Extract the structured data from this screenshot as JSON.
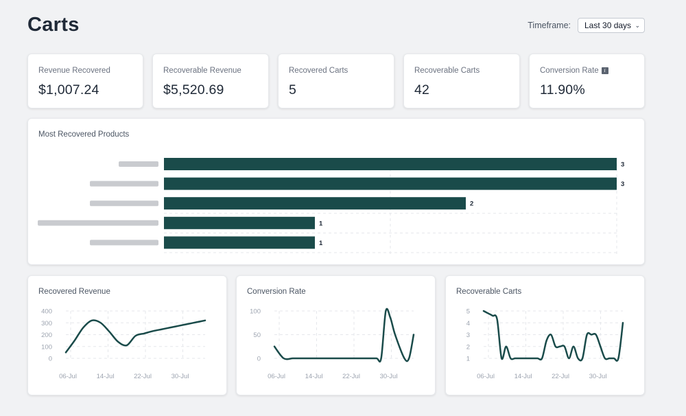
{
  "header": {
    "title": "Carts",
    "timeframe_label": "Timeframe:",
    "timeframe_value": "Last 30 days"
  },
  "stats": [
    {
      "label": "Revenue Recovered",
      "value": "$1,007.24"
    },
    {
      "label": "Recoverable Revenue",
      "value": "$5,520.69"
    },
    {
      "label": "Recovered Carts",
      "value": "5"
    },
    {
      "label": "Recoverable Carts",
      "value": "42"
    },
    {
      "label": "Conversion Rate",
      "value": "11.90%",
      "info_icon": "info-icon"
    }
  ],
  "colors": {
    "accent": "#1a4b4a",
    "grid": "#e5e7eb",
    "axis_text": "#9ca3af"
  },
  "products_card": {
    "title": "Most Recovered Products"
  },
  "chart_data": [
    {
      "type": "bar",
      "orientation": "horizontal",
      "title": "Most Recovered Products",
      "categories": [
        "",
        "",
        "",
        "",
        ""
      ],
      "values": [
        3,
        3,
        2,
        1,
        1
      ],
      "xlim": [
        0,
        3
      ],
      "data_labels": [
        "3",
        "3",
        "2",
        "1",
        "1"
      ],
      "grid": true
    },
    {
      "type": "line",
      "title": "Recovered Revenue",
      "xticks": [
        "06-Jul",
        "14-Jul",
        "22-Jul",
        "30-Jul"
      ],
      "yticks": [
        "400",
        "300",
        "200",
        "100",
        "0"
      ],
      "ylim": [
        0,
        400
      ],
      "x": [
        0,
        2,
        4,
        6,
        8,
        10,
        12,
        14,
        16,
        18,
        20,
        22,
        24,
        26,
        28,
        30,
        32
      ],
      "values": [
        50,
        150,
        260,
        320,
        300,
        225,
        140,
        110,
        190,
        210,
        230,
        245,
        260,
        275,
        290,
        305,
        320
      ],
      "grid": true
    },
    {
      "type": "line",
      "title": "Conversion Rate",
      "xticks": [
        "06-Jul",
        "14-Jul",
        "22-Jul",
        "30-Jul"
      ],
      "yticks": [
        "100",
        "50",
        "0"
      ],
      "ylim": [
        0,
        100
      ],
      "x": [
        0,
        2,
        4,
        6,
        8,
        10,
        12,
        14,
        16,
        18,
        20,
        22,
        23,
        24,
        25,
        26,
        28,
        29,
        30
      ],
      "values": [
        25,
        0,
        0,
        0,
        0,
        0,
        0,
        0,
        0,
        0,
        0,
        0,
        0,
        100,
        85,
        50,
        0,
        0,
        50
      ],
      "grid": true
    },
    {
      "type": "line",
      "title": "Recoverable Carts",
      "xticks": [
        "06-Jul",
        "14-Jul",
        "22-Jul",
        "30-Jul"
      ],
      "yticks": [
        "5",
        "4",
        "3",
        "2",
        "1"
      ],
      "ylim": [
        1,
        5
      ],
      "x": [
        0,
        1,
        2,
        3,
        4,
        5,
        6,
        7,
        8,
        9,
        10,
        11,
        12,
        13,
        14,
        15,
        16,
        17,
        18,
        19,
        20,
        21,
        22,
        23,
        24,
        25,
        26,
        27,
        28,
        29,
        30,
        31
      ],
      "values": [
        5,
        4.8,
        4.6,
        4.3,
        1,
        2,
        1,
        1,
        1,
        1,
        1,
        1,
        1,
        1,
        2.5,
        3,
        2,
        2,
        2,
        1,
        2,
        1,
        1,
        3,
        3,
        3,
        2,
        1,
        1,
        1,
        1,
        4
      ],
      "grid": true
    }
  ]
}
